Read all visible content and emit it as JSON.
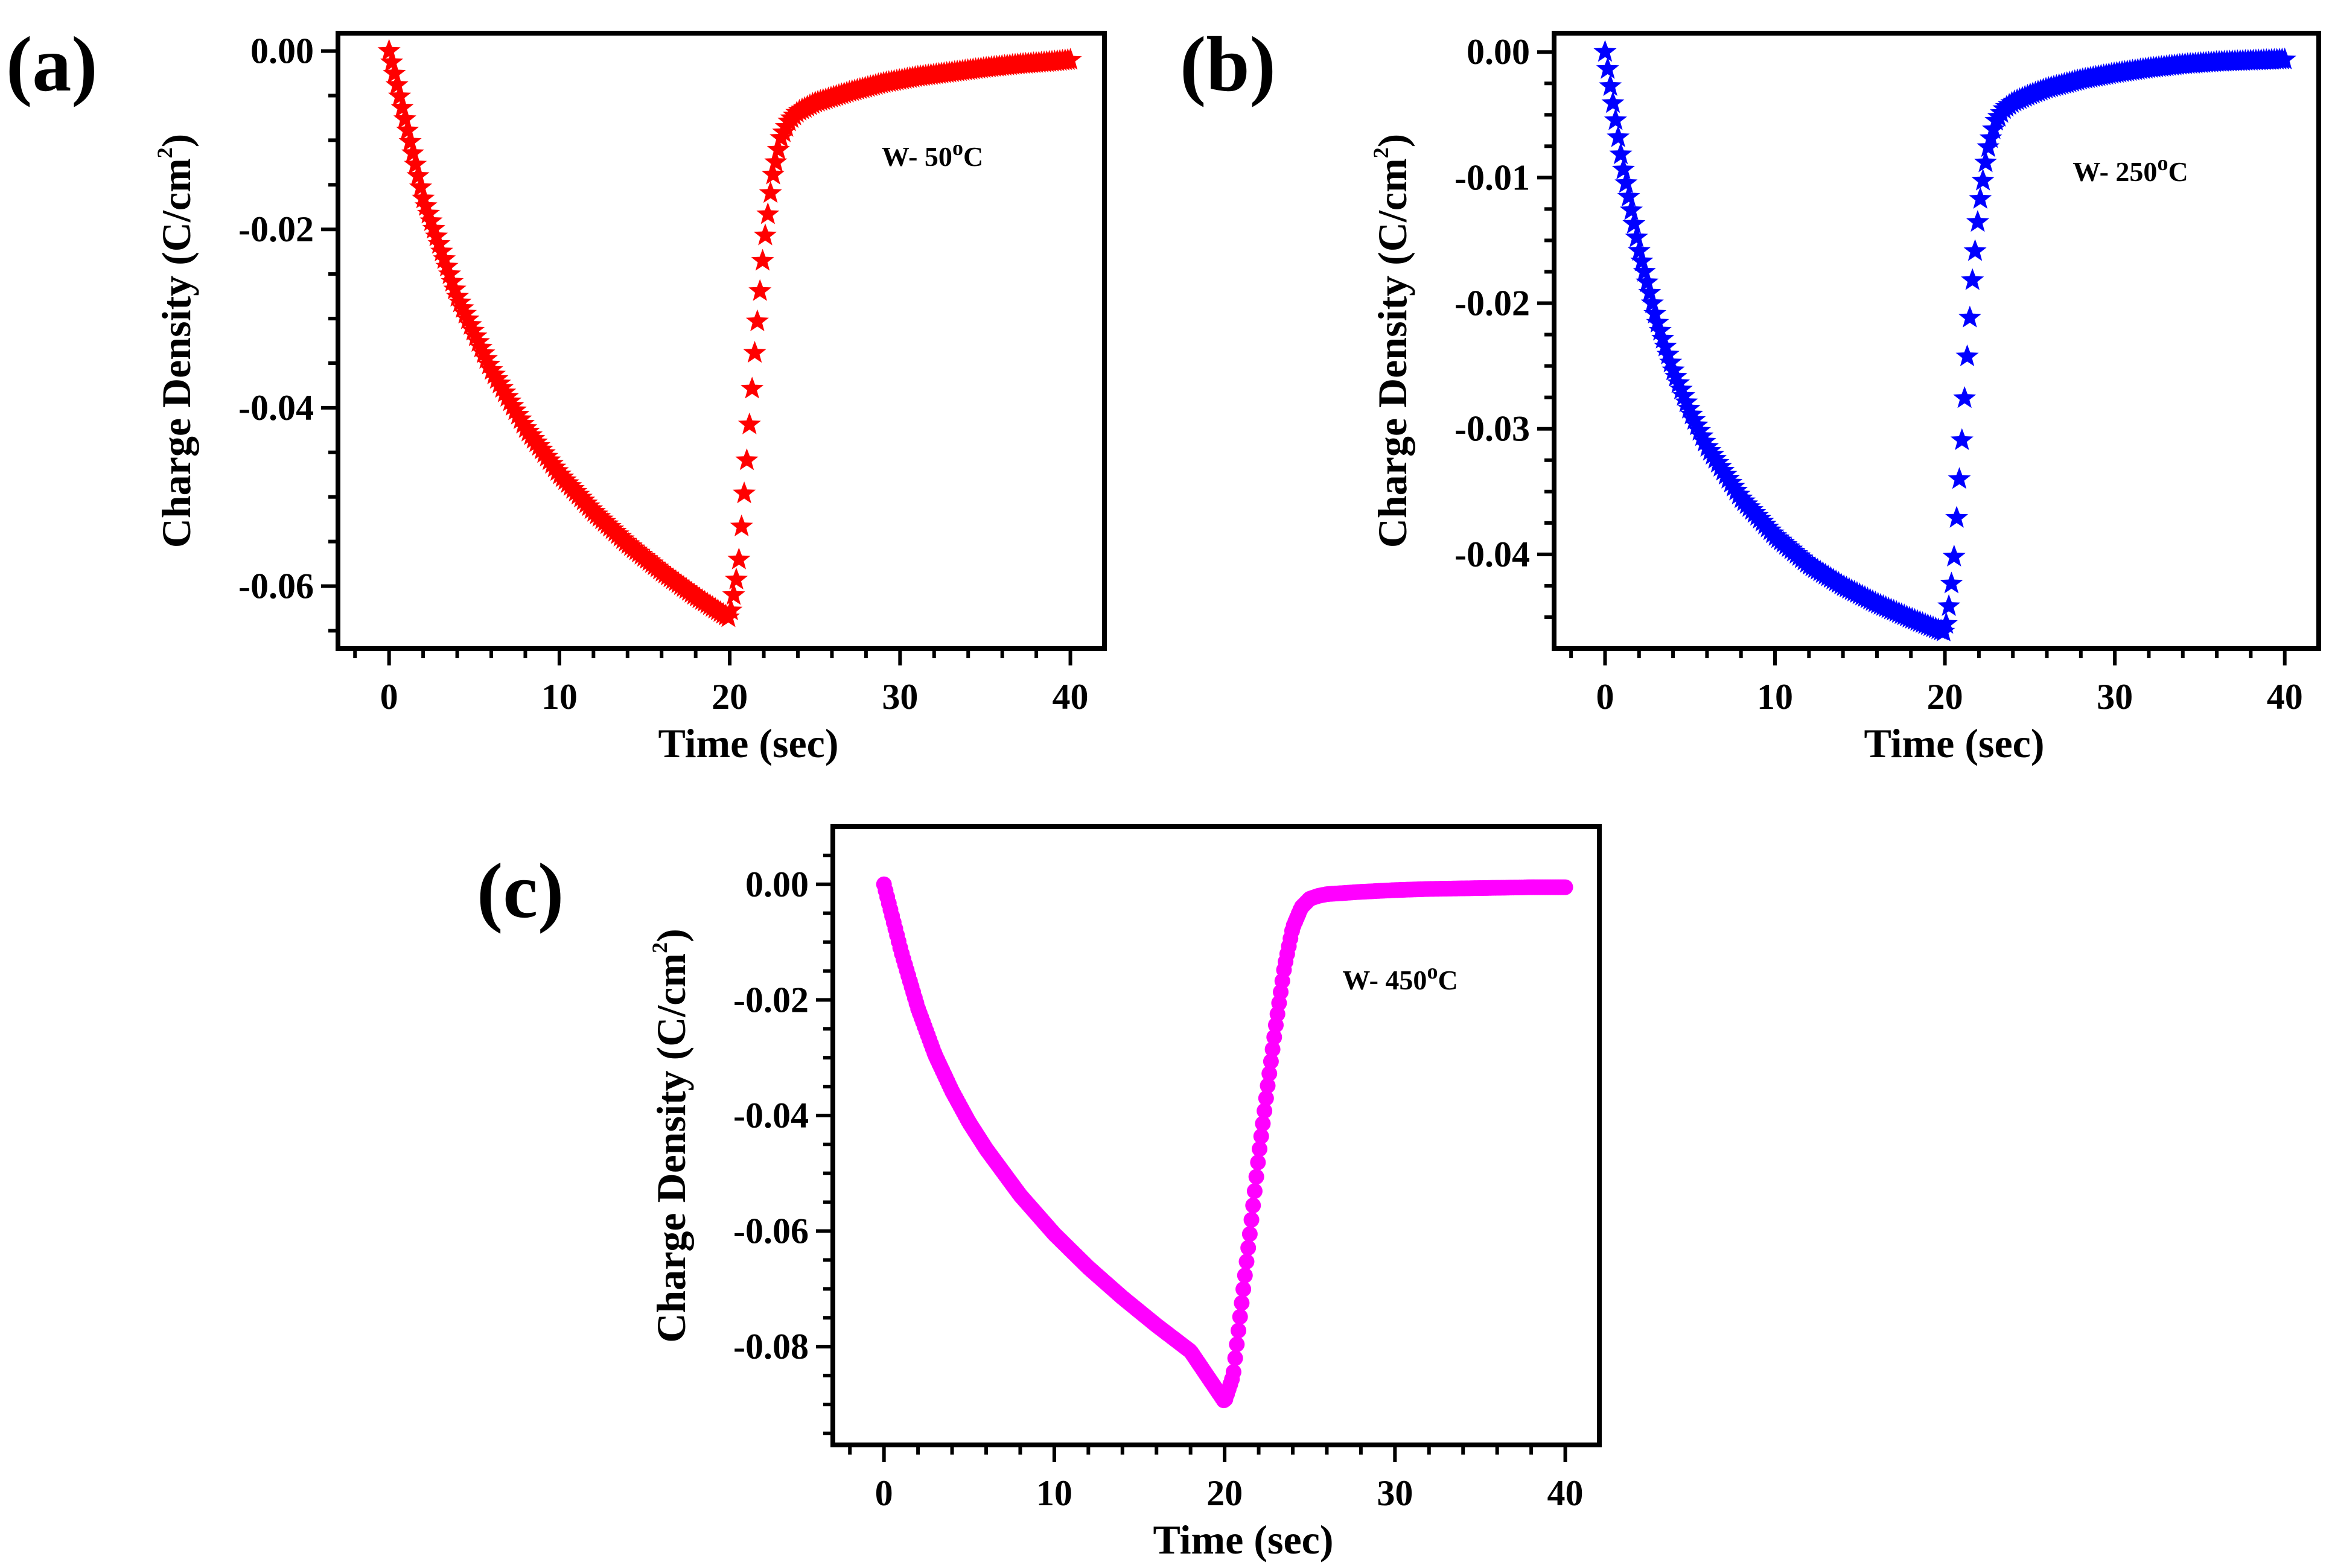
{
  "figure": {
    "panel_count": 3
  },
  "chart_data": [
    {
      "id": "a",
      "type": "scatter",
      "panel_label": "(a)",
      "annotation": {
        "prefix": "W- 50",
        "sup": "o",
        "suffix": "C"
      },
      "xlabel": "Time (sec)",
      "ylabel": {
        "main": "Charge Density (C/cm",
        "sup": "2",
        "end": ")"
      },
      "xlim": [
        -3,
        42
      ],
      "ylim": [
        -0.067,
        0.002
      ],
      "xticks": [
        0,
        10,
        20,
        30,
        40
      ],
      "xtick_labels": [
        "0",
        "10",
        "20",
        "30",
        "40"
      ],
      "yticks": [
        0.0,
        -0.02,
        -0.04,
        -0.06
      ],
      "ytick_labels": [
        "0.00",
        "-0.02",
        "-0.04",
        "-0.06"
      ],
      "color": "#ff0000",
      "marker": "star",
      "series": [
        {
          "name": "W- 50°C",
          "x": [
            0,
            2,
            4,
            6,
            8,
            10,
            12,
            14,
            16,
            18,
            20,
            20.5,
            21,
            21.5,
            22,
            22.5,
            23,
            23.5,
            24,
            25,
            27,
            29,
            31,
            33,
            35,
            37,
            39,
            40
          ],
          "y": [
            0,
            -0.0165,
            -0.0275,
            -0.0357,
            -0.0422,
            -0.0474,
            -0.0516,
            -0.0552,
            -0.0583,
            -0.0611,
            -0.0636,
            -0.058,
            -0.046,
            -0.033,
            -0.022,
            -0.0143,
            -0.0098,
            -0.0078,
            -0.0068,
            -0.0058,
            -0.0046,
            -0.0036,
            -0.0029,
            -0.0024,
            -0.0019,
            -0.0015,
            -0.0012,
            -0.001
          ]
        }
      ]
    },
    {
      "id": "b",
      "type": "scatter",
      "panel_label": "(b)",
      "annotation": {
        "prefix": "W- 250",
        "sup": "o",
        "suffix": "C"
      },
      "xlabel": "Time (sec)",
      "ylabel": {
        "main": "Charge Density (C/cm",
        "sup": "2",
        "end": ")"
      },
      "xlim": [
        -3,
        42
      ],
      "ylim": [
        -0.0475,
        0.0015
      ],
      "xticks": [
        0,
        10,
        20,
        30,
        40
      ],
      "xtick_labels": [
        "0",
        "10",
        "20",
        "30",
        "40"
      ],
      "yticks": [
        0.0,
        -0.01,
        -0.02,
        -0.03,
        -0.04
      ],
      "ytick_labels": [
        "0.00",
        "-0.01",
        "-0.02",
        "-0.03",
        "-0.04"
      ],
      "color": "#0000ff",
      "marker": "star",
      "series": [
        {
          "name": "W- 250°C",
          "x": [
            0,
            1,
            2,
            3,
            4,
            5,
            6,
            8,
            10,
            12,
            14,
            16,
            18,
            20,
            20.2,
            20.5,
            20.8,
            21,
            21.3,
            21.6,
            22,
            22.5,
            23,
            23.5,
            24,
            25,
            26,
            28,
            30,
            32,
            34,
            36,
            38,
            40
          ],
          "y": [
            0,
            -0.0088,
            -0.0158,
            -0.0212,
            -0.0253,
            -0.0286,
            -0.0314,
            -0.0355,
            -0.0385,
            -0.0408,
            -0.0425,
            -0.0439,
            -0.0451,
            -0.0462,
            -0.0445,
            -0.041,
            -0.035,
            -0.031,
            -0.0245,
            -0.0185,
            -0.0125,
            -0.0078,
            -0.0055,
            -0.0045,
            -0.004,
            -0.0034,
            -0.0029,
            -0.0022,
            -0.0017,
            -0.0013,
            -0.001,
            -0.0008,
            -0.0007,
            -0.0006
          ]
        }
      ]
    },
    {
      "id": "c",
      "type": "scatter",
      "panel_label": "(c)",
      "annotation": {
        "prefix": "W- 450",
        "sup": "o",
        "suffix": "C"
      },
      "xlabel": "Time (sec)",
      "ylabel": {
        "main": "Charge Density (C/cm",
        "sup": "2",
        "end": ")"
      },
      "xlim": [
        -3,
        42
      ],
      "ylim": [
        -0.097,
        0.01
      ],
      "xticks": [
        0,
        10,
        20,
        30,
        40
      ],
      "xtick_labels": [
        "0",
        "10",
        "20",
        "30",
        "40"
      ],
      "yticks": [
        0.0,
        -0.02,
        -0.04,
        -0.06,
        -0.08
      ],
      "ytick_labels": [
        "0.00",
        "-0.02",
        "-0.04",
        "-0.06",
        "-0.08"
      ],
      "color": "#ff00ff",
      "marker": "circle",
      "series": [
        {
          "name": "W- 450°C",
          "x": [
            0,
            1,
            2,
            3,
            4,
            5,
            6,
            8,
            10,
            12,
            14,
            16,
            18,
            20,
            20.5,
            21,
            21.5,
            22,
            22.5,
            23,
            23.5,
            24,
            24.5,
            25,
            25.5,
            26,
            27,
            28,
            30,
            32,
            34,
            36,
            38,
            40
          ],
          "y": [
            0,
            -0.0115,
            -0.0215,
            -0.0295,
            -0.0358,
            -0.0412,
            -0.0458,
            -0.0538,
            -0.0605,
            -0.0663,
            -0.0715,
            -0.0763,
            -0.0808,
            -0.0895,
            -0.085,
            -0.0725,
            -0.06,
            -0.047,
            -0.0355,
            -0.0245,
            -0.0145,
            -0.0075,
            -0.004,
            -0.0025,
            -0.002,
            -0.0017,
            -0.0015,
            -0.0013,
            -0.001,
            -0.0008,
            -0.0007,
            -0.0006,
            -0.0005,
            -0.0005
          ]
        }
      ]
    }
  ]
}
